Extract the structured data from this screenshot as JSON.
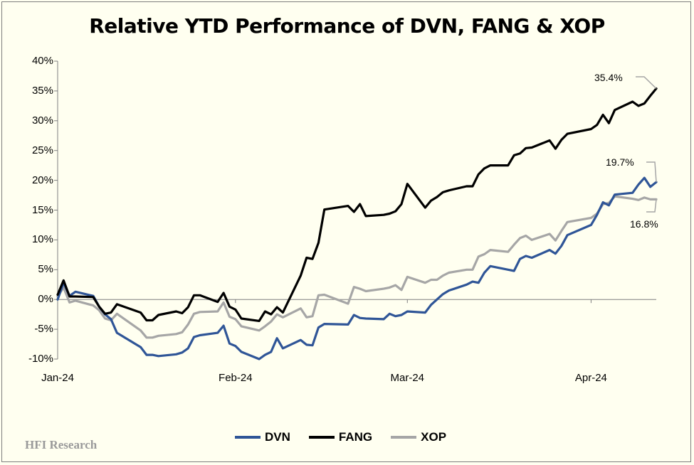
{
  "chart_data": {
    "type": "line",
    "title": "Relative YTD Performance of DVN, FANG & XOP",
    "xlabel": "",
    "ylabel": "",
    "ylim": [
      -10,
      40
    ],
    "yticks": [
      "40%",
      "35%",
      "30%",
      "25%",
      "20%",
      "15%",
      "10%",
      "5%",
      "0%",
      "-5%",
      "-10%"
    ],
    "ytick_values": [
      40,
      35,
      30,
      25,
      20,
      15,
      10,
      5,
      0,
      -5,
      -10
    ],
    "xticks": [
      "Jan-24",
      "Feb-24",
      "Mar-24",
      "Apr-24"
    ],
    "xtick_dates": [
      "2024-01-02",
      "2024-02-01",
      "2024-03-01",
      "2024-04-01"
    ],
    "xlim": [
      "2024-01-02",
      "2024-04-12"
    ],
    "legend_position": "bottom",
    "grid": false,
    "series": [
      {
        "name": "DVN",
        "color": "#2F5597",
        "points": [
          [
            "2024-01-02",
            0
          ],
          [
            "2024-01-03",
            2.8
          ],
          [
            "2024-01-04",
            0.6
          ],
          [
            "2024-01-05",
            1.3
          ],
          [
            "2024-01-08",
            0.6
          ],
          [
            "2024-01-09",
            -1.2
          ],
          [
            "2024-01-10",
            -2.5
          ],
          [
            "2024-01-11",
            -3.3
          ],
          [
            "2024-01-12",
            -5.6
          ],
          [
            "2024-01-16",
            -8
          ],
          [
            "2024-01-17",
            -9.3
          ],
          [
            "2024-01-18",
            -9.3
          ],
          [
            "2024-01-19",
            -9.5
          ],
          [
            "2024-01-22",
            -9.2
          ],
          [
            "2024-01-23",
            -8.9
          ],
          [
            "2024-01-24",
            -8.2
          ],
          [
            "2024-01-25",
            -6.3
          ],
          [
            "2024-01-26",
            -6.0
          ],
          [
            "2024-01-29",
            -5.6
          ],
          [
            "2024-01-30",
            -4.4
          ],
          [
            "2024-01-31",
            -7.4
          ],
          [
            "2024-02-01",
            -7.8
          ],
          [
            "2024-02-02",
            -8.8
          ],
          [
            "2024-02-05",
            -10
          ],
          [
            "2024-02-06",
            -9.3
          ],
          [
            "2024-02-07",
            -8.8
          ],
          [
            "2024-02-08",
            -6.5
          ],
          [
            "2024-02-09",
            -8.2
          ],
          [
            "2024-02-12",
            -6.8
          ],
          [
            "2024-02-13",
            -7.6
          ],
          [
            "2024-02-14",
            -7.7
          ],
          [
            "2024-02-15",
            -4.7
          ],
          [
            "2024-02-16",
            -4.1
          ],
          [
            "2024-02-20",
            -4.2
          ],
          [
            "2024-02-21",
            -2.6
          ],
          [
            "2024-02-22",
            -3.1
          ],
          [
            "2024-02-23",
            -3.2
          ],
          [
            "2024-02-26",
            -3.3
          ],
          [
            "2024-02-27",
            -2.4
          ],
          [
            "2024-02-28",
            -2.8
          ],
          [
            "2024-02-29",
            -2.6
          ],
          [
            "2024-03-01",
            -2.0
          ],
          [
            "2024-03-04",
            -2.2
          ],
          [
            "2024-03-05",
            -0.9
          ],
          [
            "2024-03-06",
            0
          ],
          [
            "2024-03-07",
            0.9
          ],
          [
            "2024-03-08",
            1.5
          ],
          [
            "2024-03-11",
            2.5
          ],
          [
            "2024-03-12",
            3.0
          ],
          [
            "2024-03-13",
            2.8
          ],
          [
            "2024-03-14",
            4.5
          ],
          [
            "2024-03-15",
            5.6
          ],
          [
            "2024-03-18",
            5.0
          ],
          [
            "2024-03-19",
            4.8
          ],
          [
            "2024-03-20",
            6.8
          ],
          [
            "2024-03-21",
            7.3
          ],
          [
            "2024-03-22",
            7.0
          ],
          [
            "2024-03-25",
            8.3
          ],
          [
            "2024-03-26",
            7.7
          ],
          [
            "2024-03-27",
            9.0
          ],
          [
            "2024-03-28",
            10.8
          ],
          [
            "2024-04-01",
            12.5
          ],
          [
            "2024-04-02",
            14.2
          ],
          [
            "2024-04-03",
            16.3
          ],
          [
            "2024-04-04",
            15.8
          ],
          [
            "2024-04-05",
            17.6
          ],
          [
            "2024-04-08",
            17.9
          ],
          [
            "2024-04-09",
            19.3
          ],
          [
            "2024-04-10",
            20.4
          ],
          [
            "2024-04-11",
            18.9
          ],
          [
            "2024-04-12",
            19.7
          ]
        ]
      },
      {
        "name": "FANG",
        "color": "#000000",
        "points": [
          [
            "2024-01-02",
            0.8
          ],
          [
            "2024-01-03",
            3.2
          ],
          [
            "2024-01-04",
            0.5
          ],
          [
            "2024-01-05",
            0.5
          ],
          [
            "2024-01-08",
            0.4
          ],
          [
            "2024-01-09",
            -1.2
          ],
          [
            "2024-01-10",
            -2.4
          ],
          [
            "2024-01-11",
            -2.2
          ],
          [
            "2024-01-12",
            -0.8
          ],
          [
            "2024-01-16",
            -2.2
          ],
          [
            "2024-01-17",
            -3.5
          ],
          [
            "2024-01-18",
            -3.5
          ],
          [
            "2024-01-19",
            -2.6
          ],
          [
            "2024-01-22",
            -2.0
          ],
          [
            "2024-01-23",
            -2.3
          ],
          [
            "2024-01-24",
            -1.3
          ],
          [
            "2024-01-25",
            0.7
          ],
          [
            "2024-01-26",
            0.7
          ],
          [
            "2024-01-29",
            -0.4
          ],
          [
            "2024-01-30",
            1.1
          ],
          [
            "2024-01-31",
            -1.2
          ],
          [
            "2024-02-01",
            -1.7
          ],
          [
            "2024-02-02",
            -3.2
          ],
          [
            "2024-02-05",
            -3.6
          ],
          [
            "2024-02-06",
            -2.0
          ],
          [
            "2024-02-07",
            -2.5
          ],
          [
            "2024-02-08",
            -1.3
          ],
          [
            "2024-02-09",
            -2.2
          ],
          [
            "2024-02-12",
            4.0
          ],
          [
            "2024-02-13",
            7.0
          ],
          [
            "2024-02-14",
            6.8
          ],
          [
            "2024-02-15",
            9.5
          ],
          [
            "2024-02-16",
            15.1
          ],
          [
            "2024-02-20",
            15.7
          ],
          [
            "2024-02-21",
            14.7
          ],
          [
            "2024-02-22",
            16.0
          ],
          [
            "2024-02-23",
            14.0
          ],
          [
            "2024-02-26",
            14.2
          ],
          [
            "2024-02-27",
            14.4
          ],
          [
            "2024-02-28",
            14.8
          ],
          [
            "2024-02-29",
            16.0
          ],
          [
            "2024-03-01",
            19.4
          ],
          [
            "2024-03-04",
            15.4
          ],
          [
            "2024-03-05",
            16.6
          ],
          [
            "2024-03-06",
            17.2
          ],
          [
            "2024-03-07",
            18.0
          ],
          [
            "2024-03-08",
            18.3
          ],
          [
            "2024-03-11",
            19.0
          ],
          [
            "2024-03-12",
            19.0
          ],
          [
            "2024-03-13",
            21.0
          ],
          [
            "2024-03-14",
            22.0
          ],
          [
            "2024-03-15",
            22.5
          ],
          [
            "2024-03-18",
            22.5
          ],
          [
            "2024-03-19",
            24.2
          ],
          [
            "2024-03-20",
            24.5
          ],
          [
            "2024-03-21",
            25.4
          ],
          [
            "2024-03-22",
            25.5
          ],
          [
            "2024-03-25",
            26.7
          ],
          [
            "2024-03-26",
            25.3
          ],
          [
            "2024-03-27",
            26.8
          ],
          [
            "2024-03-28",
            27.8
          ],
          [
            "2024-04-01",
            28.6
          ],
          [
            "2024-04-02",
            29.3
          ],
          [
            "2024-04-03",
            31.0
          ],
          [
            "2024-04-04",
            29.6
          ],
          [
            "2024-04-05",
            31.8
          ],
          [
            "2024-04-08",
            33.2
          ],
          [
            "2024-04-09",
            32.5
          ],
          [
            "2024-04-10",
            32.9
          ],
          [
            "2024-04-11",
            34.2
          ],
          [
            "2024-04-12",
            35.4
          ]
        ]
      },
      {
        "name": "XOP",
        "color": "#A6A6A6",
        "points": [
          [
            "2024-01-02",
            0.5
          ],
          [
            "2024-01-03",
            2.0
          ],
          [
            "2024-01-04",
            -0.5
          ],
          [
            "2024-01-05",
            -0.2
          ],
          [
            "2024-01-08",
            -1.0
          ],
          [
            "2024-01-09",
            -1.8
          ],
          [
            "2024-01-10",
            -3.2
          ],
          [
            "2024-01-11",
            -3.5
          ],
          [
            "2024-01-12",
            -2.4
          ],
          [
            "2024-01-16",
            -5.2
          ],
          [
            "2024-01-17",
            -6.4
          ],
          [
            "2024-01-18",
            -6.4
          ],
          [
            "2024-01-19",
            -6.1
          ],
          [
            "2024-01-22",
            -5.8
          ],
          [
            "2024-01-23",
            -5.5
          ],
          [
            "2024-01-24",
            -4.2
          ],
          [
            "2024-01-25",
            -2.4
          ],
          [
            "2024-01-26",
            -2.1
          ],
          [
            "2024-01-29",
            -2.0
          ],
          [
            "2024-01-30",
            -0.5
          ],
          [
            "2024-01-31",
            -2.9
          ],
          [
            "2024-02-01",
            -3.3
          ],
          [
            "2024-02-02",
            -4.5
          ],
          [
            "2024-02-05",
            -5.2
          ],
          [
            "2024-02-06",
            -4.5
          ],
          [
            "2024-02-07",
            -3.7
          ],
          [
            "2024-02-08",
            -2.5
          ],
          [
            "2024-02-09",
            -3.0
          ],
          [
            "2024-02-12",
            -1.5
          ],
          [
            "2024-02-13",
            -3.0
          ],
          [
            "2024-02-14",
            -2.8
          ],
          [
            "2024-02-15",
            0.7
          ],
          [
            "2024-02-16",
            0.8
          ],
          [
            "2024-02-20",
            -0.7
          ],
          [
            "2024-02-21",
            2.1
          ],
          [
            "2024-02-22",
            1.8
          ],
          [
            "2024-02-23",
            1.4
          ],
          [
            "2024-02-26",
            1.8
          ],
          [
            "2024-02-27",
            2.0
          ],
          [
            "2024-02-28",
            2.4
          ],
          [
            "2024-02-29",
            1.6
          ],
          [
            "2024-03-01",
            3.8
          ],
          [
            "2024-03-04",
            2.8
          ],
          [
            "2024-03-05",
            3.3
          ],
          [
            "2024-03-06",
            3.3
          ],
          [
            "2024-03-07",
            4.0
          ],
          [
            "2024-03-08",
            4.5
          ],
          [
            "2024-03-11",
            5.0
          ],
          [
            "2024-03-12",
            5.0
          ],
          [
            "2024-03-13",
            7.2
          ],
          [
            "2024-03-14",
            7.6
          ],
          [
            "2024-03-15",
            8.3
          ],
          [
            "2024-03-18",
            8.0
          ],
          [
            "2024-03-19",
            9.2
          ],
          [
            "2024-03-20",
            10.3
          ],
          [
            "2024-03-21",
            10.7
          ],
          [
            "2024-03-22",
            10.0
          ],
          [
            "2024-03-25",
            11.0
          ],
          [
            "2024-03-26",
            9.9
          ],
          [
            "2024-03-27",
            11.5
          ],
          [
            "2024-03-28",
            13.0
          ],
          [
            "2024-04-01",
            13.7
          ],
          [
            "2024-04-02",
            14.4
          ],
          [
            "2024-04-03",
            16.0
          ],
          [
            "2024-04-04",
            16.2
          ],
          [
            "2024-04-05",
            17.3
          ],
          [
            "2024-04-08",
            16.9
          ],
          [
            "2024-04-09",
            16.7
          ],
          [
            "2024-04-10",
            17.1
          ],
          [
            "2024-04-11",
            16.8
          ],
          [
            "2024-04-12",
            16.8
          ]
        ]
      }
    ],
    "annotations": [
      {
        "series": "FANG",
        "text": "35.4%"
      },
      {
        "series": "DVN",
        "text": "19.7%"
      },
      {
        "series": "XOP",
        "text": "16.8%"
      }
    ]
  },
  "watermark": "HFI Research"
}
